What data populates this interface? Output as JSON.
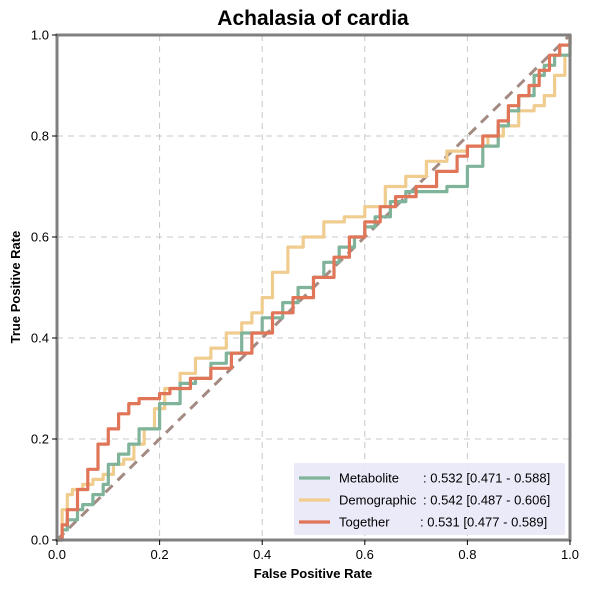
{
  "colors": {
    "metabolite": "#7fb39a",
    "demographic": "#f0cc8f",
    "together": "#e07558",
    "chance": "#a38a82",
    "frame": "#808080",
    "legend_bg": "#e9e8f8"
  },
  "chart_data": {
    "type": "line",
    "title": "Achalasia of cardia",
    "xlabel": "False Positive Rate",
    "ylabel": "True Positive Rate",
    "xlim": [
      0,
      1
    ],
    "ylim": [
      0,
      1
    ],
    "grid": true,
    "legend_placement": "bottom-right",
    "x_ticks": [
      "0.0",
      "0.2",
      "0.4",
      "0.6",
      "0.8",
      "1.0"
    ],
    "y_ticks": [
      "0.0",
      "0.2",
      "0.4",
      "0.6",
      "0.8",
      "1.0"
    ],
    "series": [
      {
        "name": "Metabolite",
        "auc_text": ": 0.532 [0.471 - 0.588]",
        "x": [
          0,
          0.01,
          0.02,
          0.04,
          0.05,
          0.07,
          0.09,
          0.1,
          0.12,
          0.14,
          0.16,
          0.2,
          0.24,
          0.27,
          0.3,
          0.33,
          0.36,
          0.4,
          0.44,
          0.47,
          0.5,
          0.52,
          0.55,
          0.58,
          0.6,
          0.62,
          0.65,
          0.68,
          0.72,
          0.76,
          0.8,
          0.83,
          0.86,
          0.88,
          0.9,
          0.93,
          0.95,
          0.97,
          1.0
        ],
        "y": [
          0,
          0.02,
          0.04,
          0.06,
          0.07,
          0.09,
          0.11,
          0.15,
          0.17,
          0.19,
          0.22,
          0.27,
          0.31,
          0.32,
          0.35,
          0.37,
          0.41,
          0.44,
          0.47,
          0.5,
          0.52,
          0.55,
          0.58,
          0.6,
          0.62,
          0.64,
          0.67,
          0.69,
          0.69,
          0.7,
          0.74,
          0.78,
          0.82,
          0.85,
          0.88,
          0.92,
          0.94,
          0.96,
          1.0
        ]
      },
      {
        "name": "Demographic",
        "auc_text": ": 0.542 [0.487 - 0.606]",
        "x": [
          0,
          0.01,
          0.02,
          0.03,
          0.05,
          0.07,
          0.09,
          0.11,
          0.13,
          0.15,
          0.17,
          0.19,
          0.21,
          0.24,
          0.27,
          0.3,
          0.33,
          0.36,
          0.38,
          0.4,
          0.42,
          0.45,
          0.48,
          0.52,
          0.56,
          0.6,
          0.64,
          0.68,
          0.72,
          0.76,
          0.8,
          0.84,
          0.87,
          0.9,
          0.93,
          0.95,
          0.97,
          0.99,
          1.0
        ],
        "y": [
          0,
          0.06,
          0.09,
          0.1,
          0.11,
          0.12,
          0.13,
          0.15,
          0.16,
          0.19,
          0.22,
          0.26,
          0.3,
          0.33,
          0.36,
          0.38,
          0.41,
          0.43,
          0.45,
          0.48,
          0.53,
          0.58,
          0.6,
          0.63,
          0.64,
          0.66,
          0.7,
          0.72,
          0.75,
          0.77,
          0.78,
          0.8,
          0.82,
          0.85,
          0.86,
          0.88,
          0.92,
          0.96,
          1.0
        ]
      },
      {
        "name": "Together",
        "auc_text": ": 0.531 [0.477 - 0.589]",
        "x": [
          0,
          0.01,
          0.02,
          0.04,
          0.06,
          0.08,
          0.1,
          0.12,
          0.14,
          0.16,
          0.18,
          0.2,
          0.22,
          0.26,
          0.3,
          0.34,
          0.38,
          0.42,
          0.46,
          0.5,
          0.54,
          0.57,
          0.6,
          0.63,
          0.66,
          0.7,
          0.74,
          0.78,
          0.8,
          0.83,
          0.86,
          0.88,
          0.9,
          0.92,
          0.94,
          0.96,
          0.98,
          1.0
        ],
        "y": [
          0,
          0.03,
          0.06,
          0.1,
          0.14,
          0.19,
          0.22,
          0.25,
          0.27,
          0.28,
          0.28,
          0.29,
          0.3,
          0.32,
          0.34,
          0.37,
          0.41,
          0.45,
          0.48,
          0.52,
          0.56,
          0.6,
          0.63,
          0.66,
          0.68,
          0.7,
          0.73,
          0.76,
          0.78,
          0.8,
          0.83,
          0.86,
          0.88,
          0.9,
          0.93,
          0.96,
          0.98,
          1.0
        ]
      }
    ],
    "chance_line": {
      "x": [
        0,
        1
      ],
      "y": [
        0,
        1
      ]
    }
  }
}
